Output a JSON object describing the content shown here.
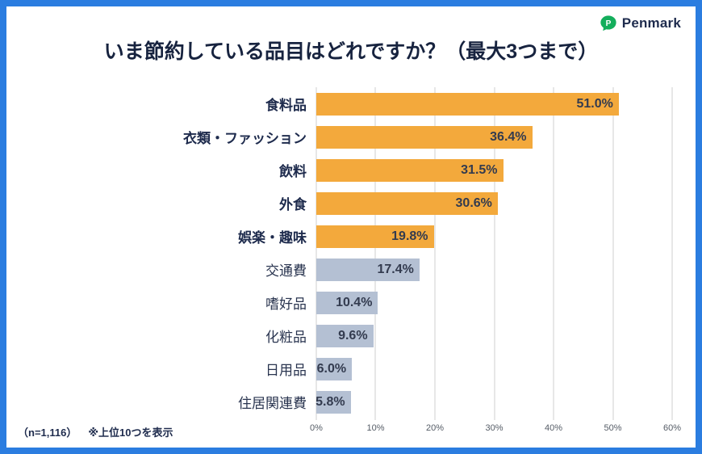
{
  "frame": {
    "border_color": "#2B7DE0"
  },
  "logo": {
    "brand": "Penmark",
    "icon_color": "#14AE5C",
    "text_color": "#1E2B4D"
  },
  "title": "いま節約している品目はどれですか？（最大3つまで）",
  "footnote": {
    "sample": "（n=1,116）",
    "note": "※上位10つを表示"
  },
  "chart_data": {
    "type": "bar",
    "orientation": "horizontal",
    "title": "いま節約している品目はどれですか？（最大3つまで）",
    "categories": [
      "食料品",
      "衣類・ファッション",
      "飲料",
      "外食",
      "娯楽・趣味",
      "交通費",
      "嗜好品",
      "化粧品",
      "日用品",
      "住居関連費"
    ],
    "values": [
      51.0,
      36.4,
      31.5,
      30.6,
      19.8,
      17.4,
      10.4,
      9.6,
      6.0,
      5.8
    ],
    "value_labels": [
      "51.0%",
      "36.4%",
      "31.5%",
      "30.6%",
      "19.8%",
      "17.4%",
      "10.4%",
      "9.6%",
      "6.0%",
      "5.8%"
    ],
    "highlight_count": 5,
    "bar_colors": {
      "highlight": "#F3A93C",
      "default": "#B4C0D3"
    },
    "xlim": [
      0,
      60
    ],
    "x_ticks": [
      0,
      10,
      20,
      30,
      40,
      50,
      60
    ],
    "x_tick_labels": [
      "0%",
      "10%",
      "20%",
      "30%",
      "40%",
      "50%",
      "60%"
    ],
    "grid": true,
    "legend": false,
    "sample_note": "（n=1,116）　※上位10つを表示"
  }
}
